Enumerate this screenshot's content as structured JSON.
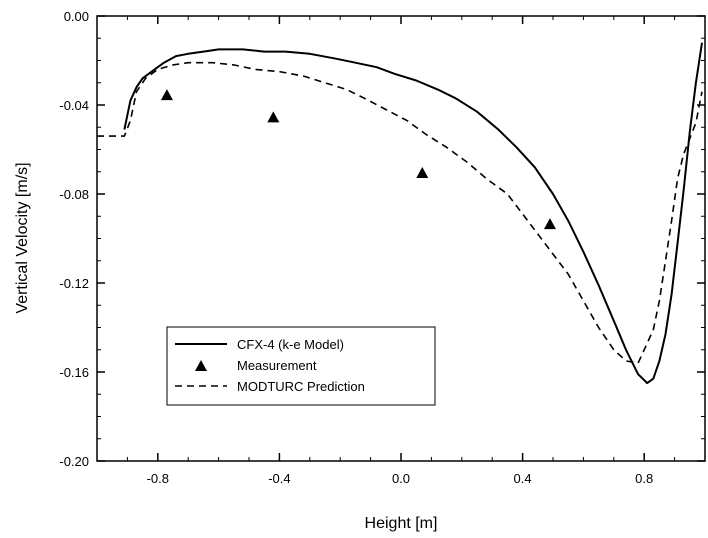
{
  "chart_data": {
    "type": "line",
    "xlabel": "Height [m]",
    "ylabel": "Vertical Velocity [m/s]",
    "xlim": [
      -1.0,
      1.0
    ],
    "ylim": [
      -0.2,
      0.0
    ],
    "x_ticks": [
      -0.8,
      -0.4,
      0.0,
      0.4,
      0.8
    ],
    "x_tick_labels": [
      "-0.8",
      "-0.4",
      "0.0",
      "0.4",
      "0.8"
    ],
    "y_ticks": [
      0.0,
      -0.04,
      -0.08,
      -0.12,
      -0.16,
      -0.2
    ],
    "y_tick_labels": [
      "0.00",
      "-0.04",
      "-0.08",
      "-0.12",
      "-0.16",
      "-0.20"
    ],
    "grid": false,
    "legend_position": "bottom-left",
    "series": [
      {
        "name": "CFX-4 (k-e Model)",
        "style": "solid",
        "points": [
          [
            -0.91,
            -0.051
          ],
          [
            -0.89,
            -0.038
          ],
          [
            -0.87,
            -0.032
          ],
          [
            -0.85,
            -0.028
          ],
          [
            -0.82,
            -0.025
          ],
          [
            -0.78,
            -0.021
          ],
          [
            -0.74,
            -0.018
          ],
          [
            -0.7,
            -0.017
          ],
          [
            -0.65,
            -0.016
          ],
          [
            -0.6,
            -0.015
          ],
          [
            -0.52,
            -0.015
          ],
          [
            -0.45,
            -0.016
          ],
          [
            -0.38,
            -0.016
          ],
          [
            -0.3,
            -0.017
          ],
          [
            -0.22,
            -0.019
          ],
          [
            -0.15,
            -0.021
          ],
          [
            -0.08,
            -0.023
          ],
          [
            -0.02,
            -0.026
          ],
          [
            0.05,
            -0.029
          ],
          [
            0.12,
            -0.033
          ],
          [
            0.18,
            -0.037
          ],
          [
            0.25,
            -0.043
          ],
          [
            0.32,
            -0.051
          ],
          [
            0.38,
            -0.059
          ],
          [
            0.44,
            -0.068
          ],
          [
            0.5,
            -0.08
          ],
          [
            0.55,
            -0.092
          ],
          [
            0.6,
            -0.106
          ],
          [
            0.65,
            -0.121
          ],
          [
            0.7,
            -0.137
          ],
          [
            0.74,
            -0.15
          ],
          [
            0.78,
            -0.161
          ],
          [
            0.81,
            -0.165
          ],
          [
            0.83,
            -0.163
          ],
          [
            0.85,
            -0.155
          ],
          [
            0.87,
            -0.143
          ],
          [
            0.89,
            -0.125
          ],
          [
            0.91,
            -0.102
          ],
          [
            0.93,
            -0.078
          ],
          [
            0.95,
            -0.052
          ],
          [
            0.97,
            -0.03
          ],
          [
            0.99,
            -0.012
          ]
        ]
      },
      {
        "name": "Measurement",
        "style": "marker",
        "marker": "triangle",
        "points": [
          [
            -0.77,
            -0.036
          ],
          [
            -0.42,
            -0.046
          ],
          [
            0.07,
            -0.071
          ],
          [
            0.49,
            -0.094
          ]
        ]
      },
      {
        "name": "MODTURC Prediction",
        "style": "dashed",
        "points": [
          [
            -1.0,
            -0.054
          ],
          [
            -0.91,
            -0.054
          ],
          [
            -0.89,
            -0.047
          ],
          [
            -0.87,
            -0.034
          ],
          [
            -0.84,
            -0.028
          ],
          [
            -0.8,
            -0.024
          ],
          [
            -0.75,
            -0.022
          ],
          [
            -0.7,
            -0.021
          ],
          [
            -0.62,
            -0.021
          ],
          [
            -0.55,
            -0.022
          ],
          [
            -0.48,
            -0.024
          ],
          [
            -0.4,
            -0.025
          ],
          [
            -0.32,
            -0.027
          ],
          [
            -0.25,
            -0.03
          ],
          [
            -0.18,
            -0.033
          ],
          [
            -0.12,
            -0.037
          ],
          [
            -0.05,
            -0.042
          ],
          [
            0.02,
            -0.047
          ],
          [
            0.08,
            -0.053
          ],
          [
            0.15,
            -0.059
          ],
          [
            0.22,
            -0.066
          ],
          [
            0.28,
            -0.073
          ],
          [
            0.35,
            -0.08
          ],
          [
            0.4,
            -0.089
          ],
          [
            0.45,
            -0.098
          ],
          [
            0.5,
            -0.107
          ],
          [
            0.55,
            -0.116
          ],
          [
            0.6,
            -0.128
          ],
          [
            0.65,
            -0.14
          ],
          [
            0.7,
            -0.15
          ],
          [
            0.74,
            -0.155
          ],
          [
            0.78,
            -0.156
          ],
          [
            0.8,
            -0.15
          ],
          [
            0.83,
            -0.141
          ],
          [
            0.85,
            -0.128
          ],
          [
            0.87,
            -0.11
          ],
          [
            0.89,
            -0.092
          ],
          [
            0.91,
            -0.073
          ],
          [
            0.93,
            -0.062
          ],
          [
            0.95,
            -0.055
          ],
          [
            0.97,
            -0.048
          ],
          [
            0.99,
            -0.034
          ]
        ]
      }
    ]
  }
}
